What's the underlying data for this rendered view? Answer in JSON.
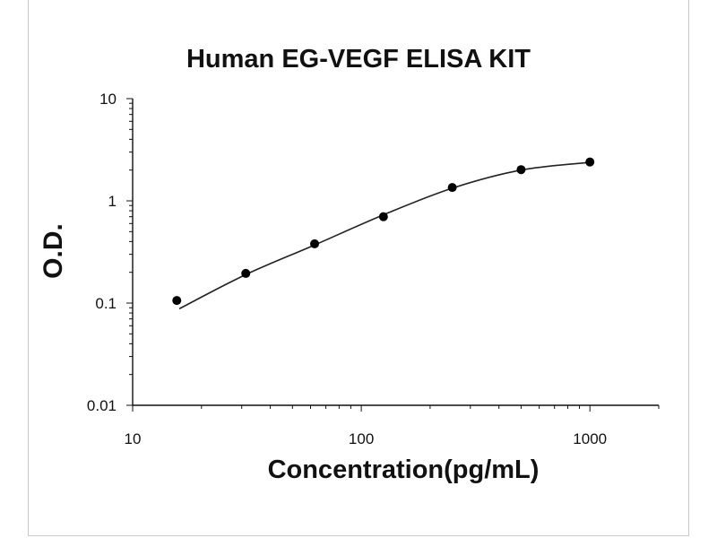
{
  "chart_data": {
    "type": "scatter",
    "title": "Human EG-VEGF ELISA KIT",
    "xlabel": "Concentration(pg/mL)",
    "ylabel": "O.D.",
    "x_scale": "log",
    "y_scale": "log",
    "xlim": [
      10,
      2000
    ],
    "ylim": [
      0.01,
      10
    ],
    "x_ticks": [
      "10",
      "100",
      "1000"
    ],
    "y_ticks": [
      "0.01",
      "0.1",
      "1",
      "10"
    ],
    "grid": false,
    "legend": "none",
    "series": [
      {
        "points": [
          {
            "x": 15.6,
            "y": 0.106
          },
          {
            "x": 31.25,
            "y": 0.195
          },
          {
            "x": 62.5,
            "y": 0.38
          },
          {
            "x": 125,
            "y": 0.7
          },
          {
            "x": 250,
            "y": 1.35
          },
          {
            "x": 500,
            "y": 2.02
          },
          {
            "x": 1000,
            "y": 2.4
          }
        ],
        "fit_curve": {
          "type": "smooth",
          "points": [
            {
              "x": 16,
              "y": 0.088
            },
            {
              "x": 31.25,
              "y": 0.19
            },
            {
              "x": 62.5,
              "y": 0.37
            },
            {
              "x": 125,
              "y": 0.73
            },
            {
              "x": 250,
              "y": 1.33
            },
            {
              "x": 500,
              "y": 2.0
            },
            {
              "x": 1000,
              "y": 2.38
            }
          ]
        }
      }
    ],
    "colors": {
      "marker": "#000000",
      "line": "#222222",
      "axis": "#111111"
    }
  }
}
